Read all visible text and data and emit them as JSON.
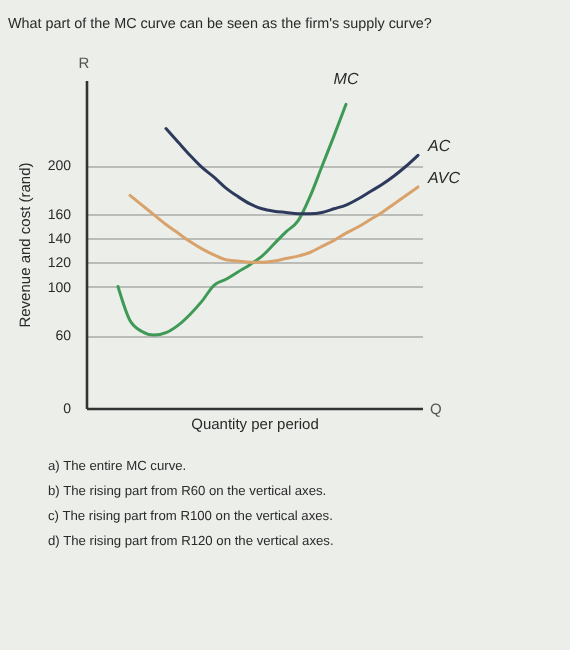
{
  "chart_data": {
    "type": "line",
    "title": "What part of the MC curve can be seen as the firm's supply curve?",
    "xlabel": "Quantity per period",
    "ylabel": "Revenue and cost (rand)",
    "categories": [
      null,
      null,
      null,
      null,
      null,
      null,
      null,
      null,
      null,
      null,
      null,
      null,
      null,
      null,
      null,
      null,
      null,
      null,
      null,
      null,
      null,
      null,
      null,
      null,
      null,
      null
    ],
    "series": [
      {
        "name": "MC",
        "color": "#3f9a55",
        "values": [
          100,
          72,
          63,
          60,
          62,
          68,
          77,
          88,
          101,
          106,
          112,
          118,
          125,
          135,
          145,
          154,
          174,
          199,
          224,
          250,
          null,
          null,
          null,
          null,
          null,
          null
        ]
      },
      {
        "name": "AC",
        "color": "#2d3a5c",
        "values": [
          null,
          null,
          null,
          null,
          230,
          219,
          208,
          198,
          190,
          181,
          174,
          168,
          164,
          162,
          161,
          160,
          160,
          161,
          164,
          167,
          172,
          178,
          184,
          191,
          199,
          208
        ]
      },
      {
        "name": "AVC",
        "color": "#d9a26a",
        "values": [
          null,
          175,
          167,
          159,
          151,
          144,
          137,
          131,
          126,
          122,
          121,
          120,
          120,
          121,
          123,
          125,
          128,
          133,
          138,
          144,
          149,
          155,
          161,
          168,
          175,
          182
        ]
      }
    ],
    "ylim": [
      0,
      270
    ],
    "yticks": [
      0,
      60,
      100,
      120,
      140,
      160,
      200
    ],
    "grid": "y",
    "tick_labels": "y",
    "annotations": [
      "R",
      "Q",
      "a) The entire MC curve.",
      "b) The rising part from R60 on the vertical axes.",
      "c) The rising part from R100 on the vertical axes.",
      "d) The rising part from R120 on the vertical axes."
    ]
  }
}
